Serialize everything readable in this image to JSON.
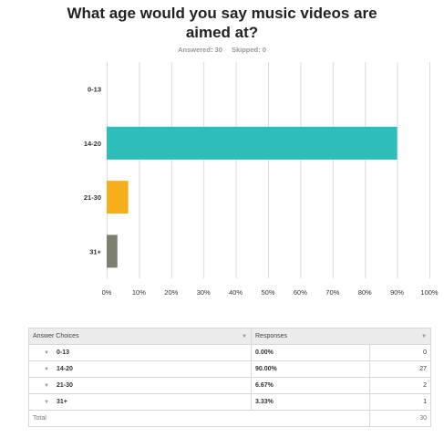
{
  "title": "What age would you say music videos are aimed at?",
  "answered_label": "Answered: 30",
  "skipped_label": "Skipped: 0",
  "chart_data": {
    "type": "bar",
    "orientation": "horizontal",
    "categories": [
      "0-13",
      "14-20",
      "21-30",
      "31+"
    ],
    "values": [
      0.0,
      90.0,
      6.67,
      3.33
    ],
    "colors": [
      "#2ebeba",
      "#2ebeba",
      "#f7ae1d",
      "#7f7f71"
    ],
    "xlim": [
      0,
      100
    ],
    "xticks": [
      0,
      10,
      20,
      30,
      40,
      50,
      60,
      70,
      80,
      90,
      100
    ],
    "xtick_labels": [
      "0%",
      "10%",
      "20%",
      "30%",
      "40%",
      "50%",
      "60%",
      "70%",
      "80%",
      "90%",
      "100%"
    ],
    "grid": true
  },
  "table": {
    "headers": [
      "Answer Choices",
      "Responses"
    ],
    "rows": [
      {
        "choice": "0-13",
        "percent": "0.00%",
        "count": "0"
      },
      {
        "choice": "14-20",
        "percent": "90.00%",
        "count": "27"
      },
      {
        "choice": "21-30",
        "percent": "6.67%",
        "count": "2"
      },
      {
        "choice": "31+",
        "percent": "3.33%",
        "count": "1"
      }
    ],
    "total_label": "Total",
    "total_count": "30"
  }
}
